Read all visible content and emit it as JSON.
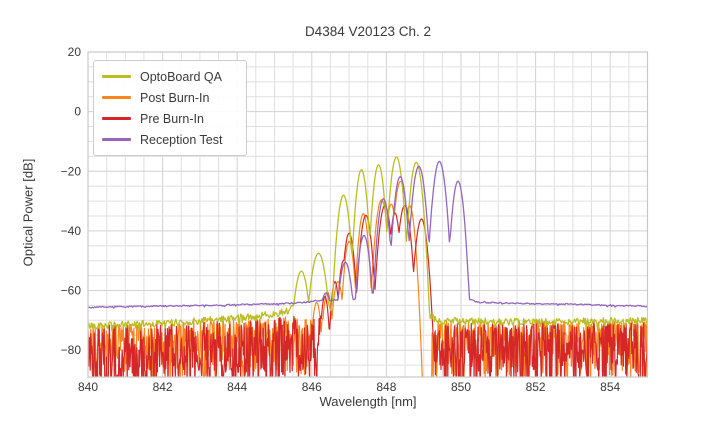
{
  "chart_data": {
    "type": "line",
    "title": "D4384 V20123 Ch. 2",
    "xlabel": "Wavelength [nm]",
    "ylabel": "Optical Power [dB]",
    "xlim": [
      840,
      855
    ],
    "ylim": [
      -89,
      20
    ],
    "xticks": [
      840,
      842,
      844,
      846,
      848,
      850,
      852,
      854
    ],
    "yticks": [
      20,
      0,
      -20,
      -40,
      -60,
      -80
    ],
    "minor_x_step": 0.5,
    "minor_y_step": 5,
    "grid": true,
    "legend_position": "upper left",
    "series": [
      {
        "name": "OptoBoard QA",
        "color": "#bcbd22",
        "z": 3,
        "seed": 42,
        "step": 0.022,
        "lw": 1.3,
        "baseline": [
          [
            840,
            -71.8
          ],
          [
            841,
            -71.5
          ],
          [
            842,
            -71.0
          ],
          [
            843,
            -70.2
          ],
          [
            843.8,
            -69.4
          ],
          [
            844.6,
            -68.6
          ],
          [
            845.2,
            -67.2
          ],
          [
            845.45,
            -66.3
          ],
          [
            846.0,
            -66.0
          ],
          [
            849.0,
            -67.0
          ],
          [
            849.35,
            -70.0
          ],
          [
            851,
            -70.6
          ],
          [
            853,
            -70.4
          ],
          [
            855,
            -70.2
          ]
        ],
        "noise_amp": 1.2,
        "modes": [
          [
            845.72,
            -53.5,
            0.06
          ],
          [
            846.18,
            -47.5,
            0.065
          ],
          [
            846.85,
            -28.0,
            0.05
          ],
          [
            847.33,
            -19.5,
            0.046
          ],
          [
            847.79,
            -17.8,
            0.046
          ],
          [
            848.27,
            -15.2,
            0.05
          ],
          [
            848.8,
            -17.0,
            0.05
          ]
        ]
      },
      {
        "name": "Post Burn-In",
        "color": "#f8851f",
        "z": 1,
        "seed": 1337,
        "step": 0.015,
        "lw": 1.2,
        "noise_ranges": [
          [
            840,
            846.5
          ],
          [
            849.22,
            855
          ]
        ],
        "noise_top": [
          [
            840,
            -72.5
          ],
          [
            842,
            -72.0
          ],
          [
            844,
            -71.0
          ],
          [
            845.3,
            -70.0
          ],
          [
            846.5,
            -69.5
          ],
          [
            849.22,
            -71.5
          ],
          [
            852,
            -71.3
          ],
          [
            855,
            -71.4
          ]
        ],
        "noise_depth": 19,
        "noise_pow": 1.55,
        "modes": [
          [
            846.13,
            -64.0,
            0.04
          ],
          [
            846.42,
            -60.5,
            0.04
          ],
          [
            846.7,
            -57.0,
            0.045
          ],
          [
            847.0,
            -43.5,
            0.042
          ],
          [
            847.38,
            -34.2,
            0.042
          ],
          [
            847.87,
            -29.6,
            0.05
          ],
          [
            848.13,
            -31.0,
            0.04
          ],
          [
            848.38,
            -23.4,
            0.05
          ],
          [
            848.62,
            -31.5,
            0.045
          ]
        ]
      },
      {
        "name": "Pre Burn-In",
        "color": "#d62728",
        "z": 2,
        "seed": 7,
        "step": 0.015,
        "lw": 1.2,
        "noise_ranges": [
          [
            840,
            846.92
          ],
          [
            849.12,
            855
          ]
        ],
        "noise_top": [
          [
            840,
            -73.0
          ],
          [
            842,
            -72.3
          ],
          [
            844,
            -71.3
          ],
          [
            845.5,
            -69.8
          ],
          [
            846.9,
            -68.5
          ],
          [
            849.12,
            -71.8
          ],
          [
            852,
            -71.5
          ],
          [
            855,
            -71.6
          ]
        ],
        "noise_depth": 22,
        "noise_pow": 1.3,
        "modes": [
          [
            846.35,
            -62.0,
            0.035
          ],
          [
            846.62,
            -57.0,
            0.035
          ],
          [
            846.85,
            -50.0,
            0.04
          ],
          [
            847.0,
            -40.8,
            0.045
          ],
          [
            847.45,
            -34.8,
            0.048
          ],
          [
            847.96,
            -31.5,
            0.05
          ],
          [
            848.23,
            -34.0,
            0.04
          ],
          [
            848.49,
            -31.5,
            0.05
          ],
          [
            848.94,
            -36.0,
            0.05
          ]
        ]
      },
      {
        "name": "Reception Test",
        "color": "#9467bd",
        "z": 4,
        "seed": 99,
        "step": 0.03,
        "lw": 1.3,
        "baseline": [
          [
            840,
            -65.6
          ],
          [
            841.5,
            -65.3
          ],
          [
            843,
            -65.0
          ],
          [
            844.2,
            -64.7
          ],
          [
            845.2,
            -64.4
          ],
          [
            845.75,
            -64.1
          ],
          [
            846.05,
            -63.4
          ],
          [
            846.6,
            -63.2
          ],
          [
            849.0,
            -63.0
          ],
          [
            849.95,
            -62.8
          ],
          [
            850.18,
            -62.8
          ],
          [
            850.45,
            -63.9
          ],
          [
            851.5,
            -64.3
          ],
          [
            853,
            -64.6
          ],
          [
            855,
            -65.3
          ]
        ],
        "noise_amp": 0.22,
        "modes": [
          [
            846.38,
            -60.8,
            0.06
          ],
          [
            846.9,
            -50.5,
            0.055
          ],
          [
            847.4,
            -41.5,
            0.05
          ],
          [
            847.92,
            -29.2,
            0.048
          ],
          [
            848.37,
            -21.8,
            0.05
          ],
          [
            848.87,
            -18.3,
            0.052
          ],
          [
            849.42,
            -16.7,
            0.052
          ],
          [
            849.92,
            -23.3,
            0.048
          ]
        ]
      }
    ]
  }
}
